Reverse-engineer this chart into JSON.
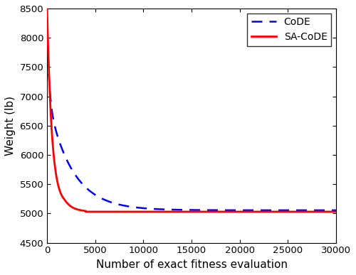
{
  "title": "",
  "xlabel": "Number of exact fitness evaluation",
  "ylabel": "Weight (lb)",
  "xlim": [
    0,
    30000
  ],
  "ylim": [
    4500,
    8500
  ],
  "xticks": [
    0,
    5000,
    10000,
    15000,
    20000,
    25000,
    30000
  ],
  "yticks": [
    4500,
    5000,
    5500,
    6000,
    6500,
    7000,
    7500,
    8000,
    8500
  ],
  "legend_labels": [
    "CoDE",
    "SA-CoDE"
  ],
  "code_color": "#0000FF",
  "sacode_color": "#FF0000",
  "code_start": 8300,
  "sacode_start": 8480,
  "code_final": 5055,
  "sacode_final": 5030,
  "code_steep_scale": 800,
  "sacode_steep_scale": 350,
  "code_transition": 3500,
  "sacode_transition": 1500,
  "figsize": [
    5.0,
    3.87
  ],
  "dpi": 100
}
